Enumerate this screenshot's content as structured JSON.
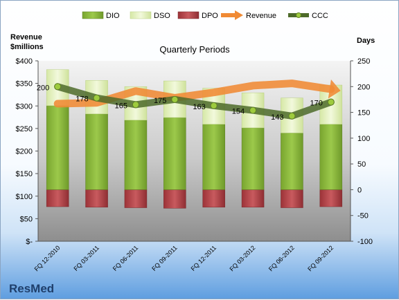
{
  "chart_data": {
    "type": "bar",
    "title": "Quarterly Periods",
    "company": "ResMed",
    "left_axis_label_line1": "Revenue",
    "left_axis_label_line2": "$millions",
    "right_axis_label": "Days",
    "categories": [
      "FQ 12-2010",
      "FQ 03-2011",
      "FQ 06-2011",
      "FQ 09-2011",
      "FQ 12-2011",
      "FQ 03-2012",
      "FQ 06-2012",
      "FQ 09-2012"
    ],
    "left_ylim": [
      0,
      400
    ],
    "left_ticks": [
      "$-",
      "$50",
      "$100",
      "$150",
      "$200",
      "$250",
      "$300",
      "$350",
      "$400"
    ],
    "right_ylim": [
      -100,
      250
    ],
    "right_ticks": [
      "-100",
      "-50",
      "0",
      "50",
      "100",
      "150",
      "200",
      "250"
    ],
    "legend_position": "top",
    "legend": [
      "DIO",
      "DSO",
      "DPO",
      "Revenue",
      "CCC"
    ],
    "series": [
      {
        "name": "DIO",
        "axis": "right",
        "values": [
          163,
          147,
          135,
          140,
          127,
          120,
          110,
          127
        ]
      },
      {
        "name": "DSO",
        "axis": "right",
        "values": [
          70,
          65,
          65,
          71,
          70,
          68,
          68,
          76
        ]
      },
      {
        "name": "DPO",
        "axis": "right",
        "values": [
          -33,
          -34,
          -35,
          -36,
          -34,
          -34,
          -35,
          -33
        ]
      },
      {
        "name": "Revenue",
        "axis": "left",
        "values": [
          305,
          307,
          333,
          318,
          330,
          345,
          350,
          337
        ]
      },
      {
        "name": "CCC",
        "axis": "right",
        "values": [
          200,
          178,
          165,
          175,
          163,
          154,
          143,
          170
        ]
      }
    ],
    "ccc_labels": [
      "200",
      "178",
      "165",
      "175",
      "163",
      "154",
      "143",
      "170"
    ],
    "colors": {
      "DIO": "#8dbb3c",
      "DSO": "#e3f0bf",
      "DPO": "#b54348",
      "Revenue": "#f08a34",
      "CCC": "#4e6b2a"
    },
    "grid": false
  }
}
